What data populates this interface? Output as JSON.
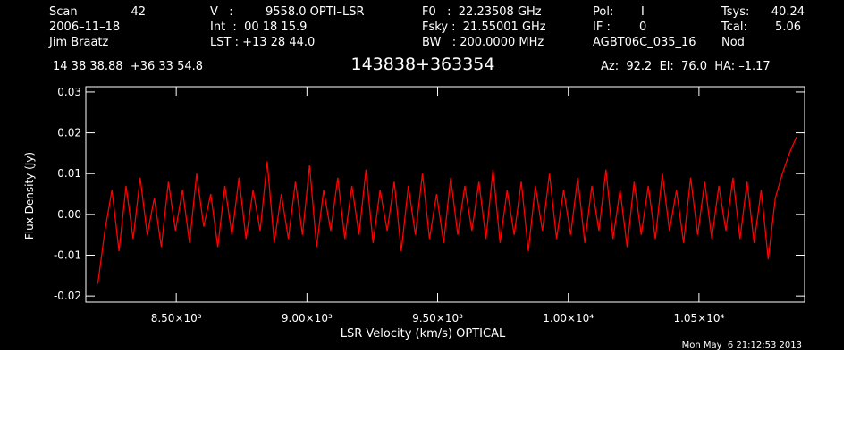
{
  "chart_data": {
    "type": "line",
    "title": "143838+363354",
    "header": [
      [
        "Scan",
        "42",
        "V   :",
        "9558.0 OPTI–LSR",
        "F0   :  22.23508 GHz",
        "Pol:",
        "I",
        "Tsys:",
        "40.24"
      ],
      [
        "2006–11–18",
        "Int  :  00 18 15.9",
        "Fsky :  21.55001 GHz",
        "IF :",
        "0",
        "Tcal:",
        "5.06"
      ],
      [
        "Jim Braatz",
        "LST : +13 28 44.0",
        "BW   : 200.0000 MHz",
        "AGBT06C_035_16",
        "Nod"
      ],
      [
        "14 38 38.88  +36 33 54.8",
        "Az:  92.2  El:  76.0  HA: –1.17"
      ]
    ],
    "timestamp": "Mon May  6 21:12:53 2013",
    "x_label": "LSR Velocity (km/s) OPTICAL",
    "y_label": "Flux Density (Jy)",
    "xlim": [
      8154,
      10904
    ],
    "ylim": [
      -0.0215,
      0.0313
    ],
    "xticks": [
      {
        "value": 8500,
        "label": "8.50×10³"
      },
      {
        "value": 9000,
        "label": "9.00×10³"
      },
      {
        "value": 9500,
        "label": "9.50×10³"
      },
      {
        "value": 10000,
        "label": "1.00×10⁴"
      },
      {
        "value": 10500,
        "label": "1.05×10⁴"
      }
    ],
    "yticks": [
      -0.02,
      -0.01,
      {
        "value": 0,
        "label": "0.00"
      },
      0.01,
      0.02,
      0.03
    ],
    "x": [
      8200,
      8227,
      8254,
      8281,
      8308,
      8335,
      8362,
      8389,
      8416,
      8443,
      8470,
      8497,
      8524,
      8551,
      8578,
      8605,
      8632,
      8659,
      8686,
      8713,
      8740,
      8767,
      8794,
      8821,
      8848,
      8875,
      8902,
      8929,
      8956,
      8983,
      9010,
      9037,
      9064,
      9091,
      9118,
      9145,
      9172,
      9199,
      9226,
      9253,
      9280,
      9307,
      9334,
      9361,
      9388,
      9415,
      9442,
      9469,
      9496,
      9523,
      9550,
      9577,
      9604,
      9631,
      9658,
      9685,
      9712,
      9739,
      9766,
      9793,
      9820,
      9847,
      9874,
      9901,
      9928,
      9955,
      9982,
      10009,
      10036,
      10063,
      10090,
      10117,
      10144,
      10171,
      10198,
      10225,
      10252,
      10279,
      10306,
      10333,
      10360,
      10387,
      10414,
      10441,
      10468,
      10495,
      10522,
      10549,
      10576,
      10603,
      10630,
      10657,
      10684,
      10711,
      10738,
      10765,
      10792,
      10819,
      10846,
      10873
    ],
    "series": [
      {
        "color": "#ff0000",
        "values": [
          -0.017,
          -0.004,
          0.006,
          -0.009,
          0.007,
          -0.006,
          0.009,
          -0.005,
          0.004,
          -0.008,
          0.008,
          -0.004,
          0.006,
          -0.007,
          0.01,
          -0.003,
          0.005,
          -0.008,
          0.007,
          -0.005,
          0.009,
          -0.006,
          0.006,
          -0.004,
          0.013,
          -0.007,
          0.005,
          -0.006,
          0.008,
          -0.005,
          0.012,
          -0.008,
          0.006,
          -0.004,
          0.009,
          -0.006,
          0.007,
          -0.005,
          0.011,
          -0.007,
          0.006,
          -0.004,
          0.008,
          -0.009,
          0.007,
          -0.005,
          0.01,
          -0.006,
          0.005,
          -0.007,
          0.009,
          -0.005,
          0.007,
          -0.004,
          0.008,
          -0.006,
          0.011,
          -0.007,
          0.006,
          -0.005,
          0.008,
          -0.009,
          0.007,
          -0.004,
          0.01,
          -0.006,
          0.006,
          -0.005,
          0.009,
          -0.007,
          0.007,
          -0.004,
          0.011,
          -0.006,
          0.006,
          -0.008,
          0.008,
          -0.005,
          0.007,
          -0.006,
          0.01,
          -0.004,
          0.006,
          -0.007,
          0.009,
          -0.005,
          0.008,
          -0.006,
          0.007,
          -0.004,
          0.009,
          -0.006,
          0.008,
          -0.007,
          0.006,
          -0.011,
          0.004,
          0.01,
          0.015,
          0.019
        ]
      }
    ]
  }
}
